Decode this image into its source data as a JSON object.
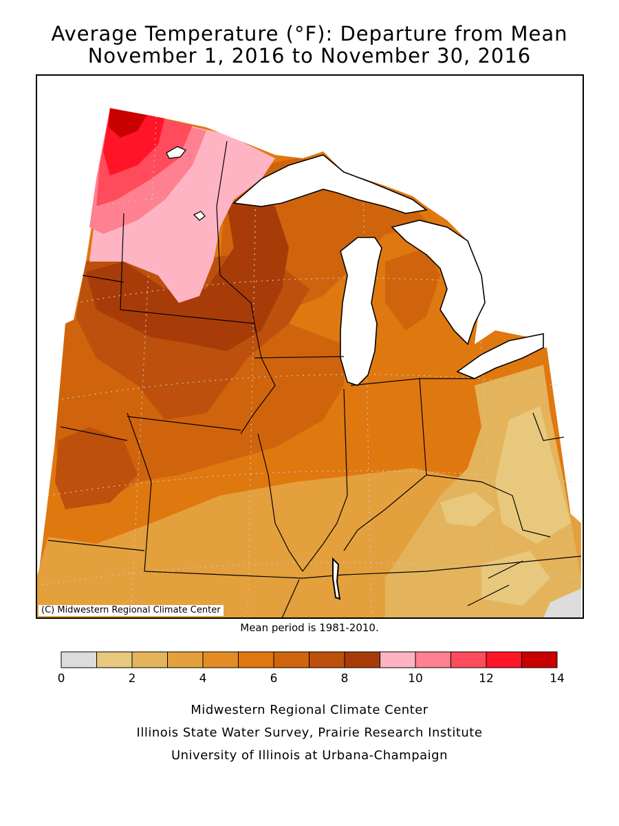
{
  "title": {
    "line1": "Average Temperature (°F): Departure from Mean",
    "line2": "November 1, 2016 to November 30, 2016"
  },
  "map": {
    "credit": "(C) Midwestern Regional Climate Center",
    "mean_period": "Mean period is 1981-2010.",
    "land_base_color": "#E07810",
    "water_color": "#FFFFFF"
  },
  "legend": {
    "bins": [
      {
        "from": 0,
        "to": 1,
        "color": "#DCDCDC"
      },
      {
        "from": 1,
        "to": 2,
        "color": "#E8C87C"
      },
      {
        "from": 2,
        "to": 3,
        "color": "#E4B45C"
      },
      {
        "from": 3,
        "to": 4,
        "color": "#E4A03C"
      },
      {
        "from": 4,
        "to": 5,
        "color": "#E48C24"
      },
      {
        "from": 5,
        "to": 6,
        "color": "#E07810"
      },
      {
        "from": 6,
        "to": 7,
        "color": "#D0640C"
      },
      {
        "from": 7,
        "to": 8,
        "color": "#BC500C"
      },
      {
        "from": 8,
        "to": 9,
        "color": "#A83C08"
      },
      {
        "from": 9,
        "to": 10,
        "color": "#FFB4C4"
      },
      {
        "from": 10,
        "to": 11,
        "color": "#FF8090"
      },
      {
        "from": 11,
        "to": 12,
        "color": "#FF4C5C"
      },
      {
        "from": 12,
        "to": 13,
        "color": "#FF1428"
      },
      {
        "from": 13,
        "to": 14,
        "color": "#C80000"
      }
    ],
    "tick_labels": [
      "0",
      "2",
      "4",
      "6",
      "8",
      "10",
      "12",
      "14"
    ]
  },
  "footer": {
    "line1": "Midwestern Regional Climate Center",
    "line2": "Illinois State Water Survey, Prairie Research Institute",
    "line3": "University of Illinois at Urbana-Champaign"
  }
}
